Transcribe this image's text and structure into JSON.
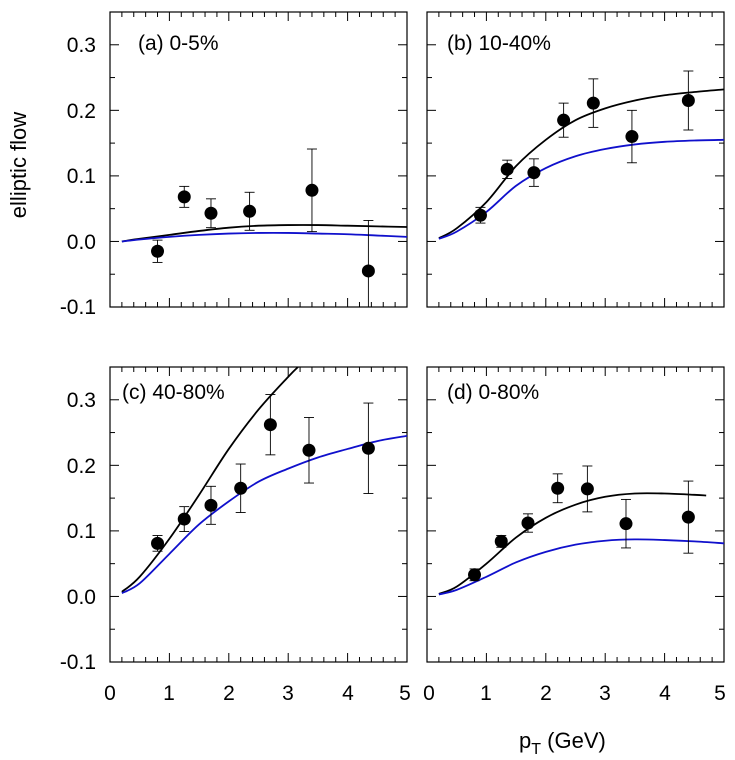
{
  "chart_data": [
    {
      "type": "scatter",
      "panel_label": "(a) 0-5%",
      "xlim": [
        0,
        5
      ],
      "ylim": [
        -0.1,
        0.35
      ],
      "points": [
        {
          "x": 0.8,
          "y": -0.015,
          "err": 0.017
        },
        {
          "x": 1.25,
          "y": 0.068,
          "err": 0.016
        },
        {
          "x": 1.7,
          "y": 0.043,
          "err": 0.022
        },
        {
          "x": 2.35,
          "y": 0.046,
          "err": 0.029
        },
        {
          "x": 3.4,
          "y": 0.078,
          "err": 0.063
        },
        {
          "x": 4.35,
          "y": -0.045,
          "err": 0.077
        }
      ],
      "series": [
        {
          "name": "black-curve",
          "color": "#000000",
          "x": [
            0.2,
            0.5,
            1,
            1.5,
            2,
            2.5,
            3,
            3.5,
            4,
            4.5,
            5
          ],
          "y": [
            0.0,
            0.004,
            0.01,
            0.016,
            0.021,
            0.024,
            0.025,
            0.025,
            0.024,
            0.023,
            0.022
          ]
        },
        {
          "name": "blue-curve",
          "color": "#1010cc",
          "x": [
            0.2,
            0.5,
            1,
            1.5,
            2,
            2.5,
            3,
            3.5,
            4,
            4.5,
            5
          ],
          "y": [
            0.0,
            0.003,
            0.007,
            0.01,
            0.012,
            0.013,
            0.013,
            0.012,
            0.011,
            0.009,
            0.007
          ]
        }
      ]
    },
    {
      "type": "scatter",
      "panel_label": "(b) 10-40%",
      "xlim": [
        0,
        5
      ],
      "ylim": [
        -0.1,
        0.35
      ],
      "points": [
        {
          "x": 0.9,
          "y": 0.04,
          "err": 0.012
        },
        {
          "x": 1.35,
          "y": 0.11,
          "err": 0.014
        },
        {
          "x": 1.8,
          "y": 0.105,
          "err": 0.021
        },
        {
          "x": 2.3,
          "y": 0.185,
          "err": 0.026
        },
        {
          "x": 2.8,
          "y": 0.211,
          "err": 0.037
        },
        {
          "x": 3.45,
          "y": 0.16,
          "err": 0.04
        },
        {
          "x": 4.4,
          "y": 0.215,
          "err": 0.045
        }
      ],
      "series": [
        {
          "name": "black-curve",
          "color": "#000000",
          "x": [
            0.2,
            0.5,
            1,
            1.5,
            2,
            2.5,
            3,
            3.5,
            4,
            4.5,
            5
          ],
          "y": [
            0.005,
            0.02,
            0.06,
            0.115,
            0.155,
            0.185,
            0.203,
            0.215,
            0.223,
            0.228,
            0.232
          ]
        },
        {
          "name": "blue-curve",
          "color": "#1010cc",
          "x": [
            0.2,
            0.5,
            1,
            1.5,
            2,
            2.5,
            3,
            3.5,
            4,
            4.5,
            5
          ],
          "y": [
            0.004,
            0.015,
            0.045,
            0.085,
            0.112,
            0.13,
            0.141,
            0.148,
            0.152,
            0.154,
            0.155
          ]
        }
      ]
    },
    {
      "type": "scatter",
      "panel_label": "(c) 40-80%",
      "xlim": [
        0,
        5
      ],
      "ylim": [
        -0.1,
        0.35
      ],
      "points": [
        {
          "x": 0.8,
          "y": 0.081,
          "err": 0.012
        },
        {
          "x": 1.25,
          "y": 0.118,
          "err": 0.019
        },
        {
          "x": 1.7,
          "y": 0.139,
          "err": 0.029
        },
        {
          "x": 2.2,
          "y": 0.165,
          "err": 0.037
        },
        {
          "x": 2.7,
          "y": 0.262,
          "err": 0.046
        },
        {
          "x": 3.35,
          "y": 0.223,
          "err": 0.05
        },
        {
          "x": 4.35,
          "y": 0.226,
          "err": 0.069
        }
      ],
      "series": [
        {
          "name": "black-curve",
          "color": "#000000",
          "x": [
            0.2,
            0.5,
            1,
            1.5,
            2,
            2.5,
            3,
            3.2
          ],
          "y": [
            0.007,
            0.03,
            0.088,
            0.155,
            0.225,
            0.285,
            0.335,
            0.353
          ]
        },
        {
          "name": "blue-curve",
          "color": "#1010cc",
          "x": [
            0.2,
            0.5,
            1,
            1.5,
            2,
            2.5,
            3,
            3.5,
            4,
            4.5,
            5
          ],
          "y": [
            0.005,
            0.02,
            0.065,
            0.11,
            0.145,
            0.175,
            0.195,
            0.212,
            0.225,
            0.237,
            0.245
          ]
        }
      ]
    },
    {
      "type": "scatter",
      "panel_label": "(d) 0-80%",
      "xlim": [
        0,
        5
      ],
      "ylim": [
        -0.1,
        0.35
      ],
      "points": [
        {
          "x": 0.8,
          "y": 0.033,
          "err": 0.009
        },
        {
          "x": 1.25,
          "y": 0.084,
          "err": 0.009
        },
        {
          "x": 1.7,
          "y": 0.112,
          "err": 0.014
        },
        {
          "x": 2.2,
          "y": 0.165,
          "err": 0.022
        },
        {
          "x": 2.7,
          "y": 0.164,
          "err": 0.035
        },
        {
          "x": 3.35,
          "y": 0.111,
          "err": 0.037
        },
        {
          "x": 4.4,
          "y": 0.121,
          "err": 0.055
        }
      ],
      "series": [
        {
          "name": "black-curve",
          "color": "#000000",
          "x": [
            0.2,
            0.5,
            1,
            1.5,
            2,
            2.5,
            3,
            3.5,
            4,
            4.5,
            4.7
          ],
          "y": [
            0.004,
            0.015,
            0.05,
            0.09,
            0.12,
            0.14,
            0.152,
            0.157,
            0.157,
            0.155,
            0.154
          ]
        },
        {
          "name": "blue-curve",
          "color": "#1010cc",
          "x": [
            0.2,
            0.5,
            1,
            1.5,
            2,
            2.5,
            3,
            3.5,
            4,
            4.5,
            5
          ],
          "y": [
            0.003,
            0.01,
            0.03,
            0.052,
            0.068,
            0.079,
            0.085,
            0.087,
            0.086,
            0.084,
            0.081
          ]
        }
      ]
    }
  ],
  "axes": {
    "ylabel": "elliptic flow",
    "xlabel_main": "p",
    "xlabel_sub": "T",
    "xlabel_unit": " (GeV)",
    "y_tick_labels": [
      "0.3",
      "0.2",
      "0.1",
      "0.0",
      "-0.1"
    ],
    "x_tick_labels": [
      "0",
      "1",
      "2",
      "3",
      "4",
      "5"
    ]
  }
}
